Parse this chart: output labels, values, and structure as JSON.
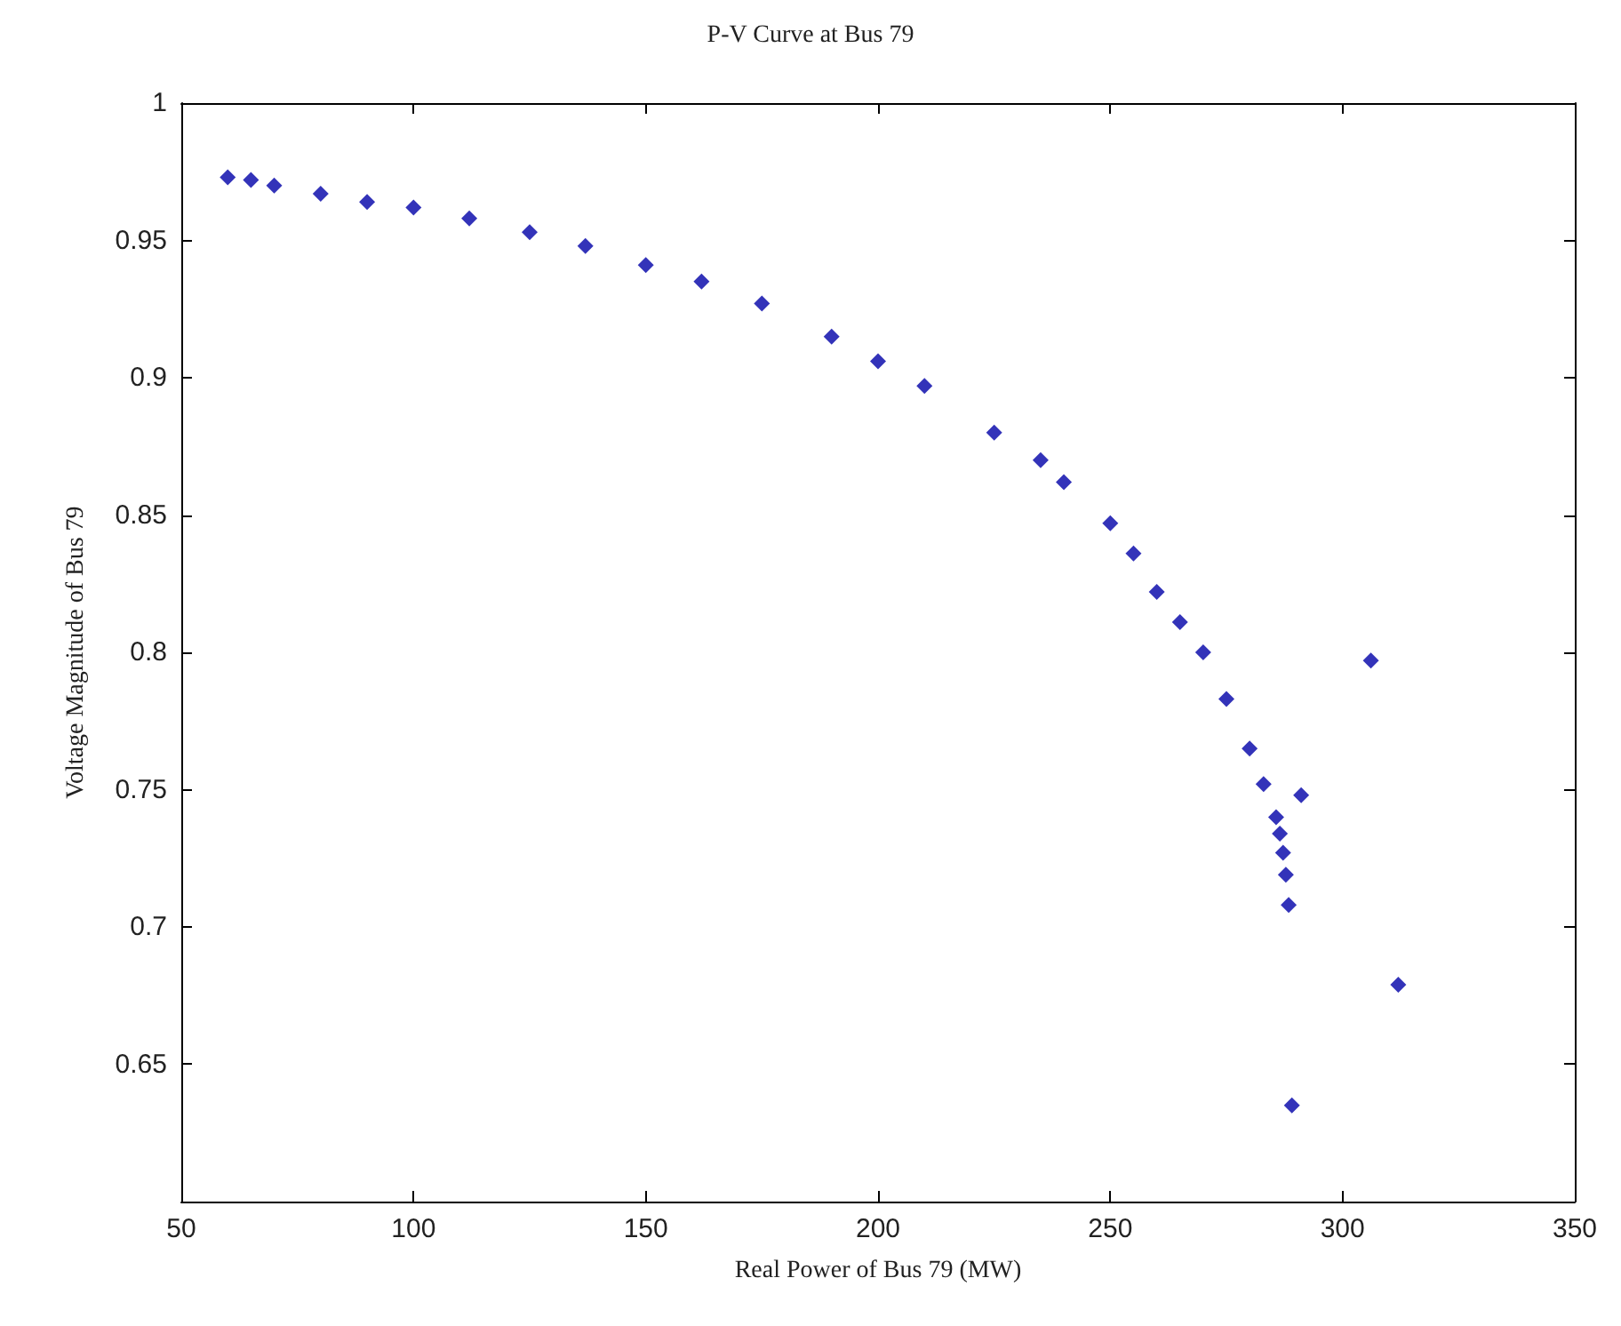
{
  "chart_data": {
    "type": "scatter",
    "title": "P-V Curve at Bus 79",
    "xlabel": "Real Power of Bus 79 (MW)",
    "ylabel": "Voltage Magnitude of Bus 79",
    "xlim": [
      50,
      350
    ],
    "xticks": [
      50,
      100,
      150,
      200,
      250,
      300,
      350
    ],
    "ylim": [
      0.6,
      1
    ],
    "yticks": [
      0.65,
      0.7,
      0.75,
      0.8,
      0.85,
      0.9,
      0.95,
      1
    ],
    "grid": false,
    "marker": "diamond",
    "series": [
      {
        "color": "#0000a8",
        "x": [
          60,
          65,
          70,
          80,
          90,
          100,
          112,
          125,
          137,
          150,
          162,
          175,
          190,
          200,
          210,
          225,
          235,
          240,
          250,
          255,
          260,
          265,
          270,
          275,
          280,
          283,
          285.7,
          286.5,
          287.2,
          287.8,
          288.4,
          291.1,
          306.1,
          312,
          289.1
        ],
        "values": [
          0.973,
          0.972,
          0.97,
          0.967,
          0.964,
          0.962,
          0.958,
          0.953,
          0.948,
          0.941,
          0.935,
          0.927,
          0.915,
          0.906,
          0.897,
          0.88,
          0.87,
          0.862,
          0.847,
          0.836,
          0.822,
          0.811,
          0.8,
          0.783,
          0.765,
          0.752,
          0.74,
          0.734,
          0.727,
          0.719,
          0.708,
          0.748,
          0.797,
          0.679,
          0.635
        ]
      }
    ]
  }
}
